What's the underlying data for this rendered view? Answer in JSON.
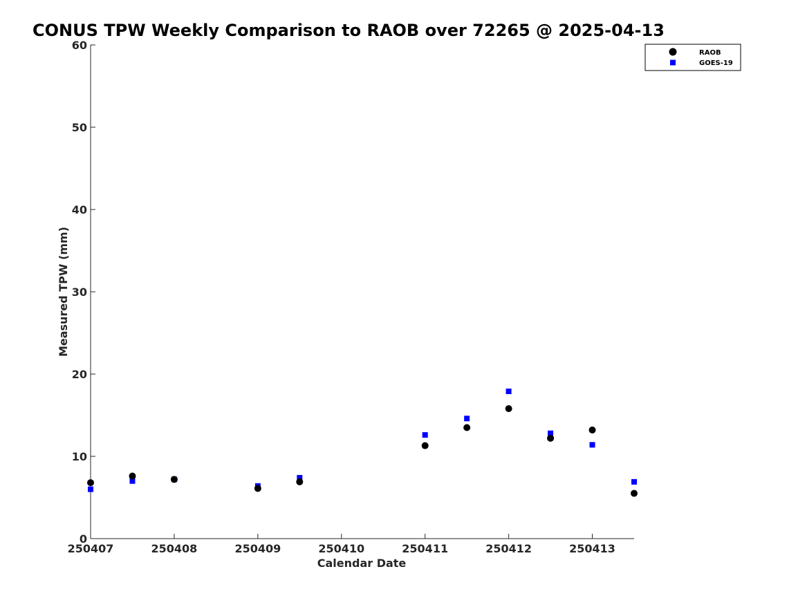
{
  "chart_data": {
    "type": "scatter",
    "title": "CONUS TPW Weekly Comparison to RAOB over 72265 @ 2025-04-13",
    "xlabel": "Calendar Date",
    "ylabel": "Measured TPW (mm)",
    "xlim": [
      0,
      6.5
    ],
    "ylim": [
      0,
      60
    ],
    "x_ticks": [
      0,
      1,
      2,
      3,
      4,
      5,
      6
    ],
    "x_tick_labels": [
      "250407",
      "250408",
      "250409",
      "250410",
      "250411",
      "250412",
      "250413"
    ],
    "y_ticks": [
      0,
      10,
      20,
      30,
      40,
      50,
      60
    ],
    "y_tick_labels": [
      "0",
      "10",
      "20",
      "30",
      "40",
      "50",
      "60"
    ],
    "grid": false,
    "legend_position": "top-right",
    "series": [
      {
        "name": "RAOB",
        "marker": "circle",
        "color": "#000000",
        "x": [
          0,
          0.5,
          1,
          2,
          2.5,
          4,
          4.5,
          5,
          5.5,
          6,
          6.5
        ],
        "y": [
          6.8,
          7.6,
          7.2,
          6.1,
          6.9,
          11.3,
          13.5,
          15.8,
          12.2,
          13.2,
          5.5
        ]
      },
      {
        "name": "GOES-19",
        "marker": "square",
        "color": "#0000ff",
        "x": [
          0,
          0.5,
          1,
          2,
          2.5,
          4,
          4.5,
          5,
          5.5,
          6,
          6.5
        ],
        "y": [
          6.0,
          7.0,
          7.2,
          6.4,
          7.4,
          12.6,
          14.6,
          17.9,
          12.8,
          11.4,
          6.9
        ]
      }
    ]
  }
}
